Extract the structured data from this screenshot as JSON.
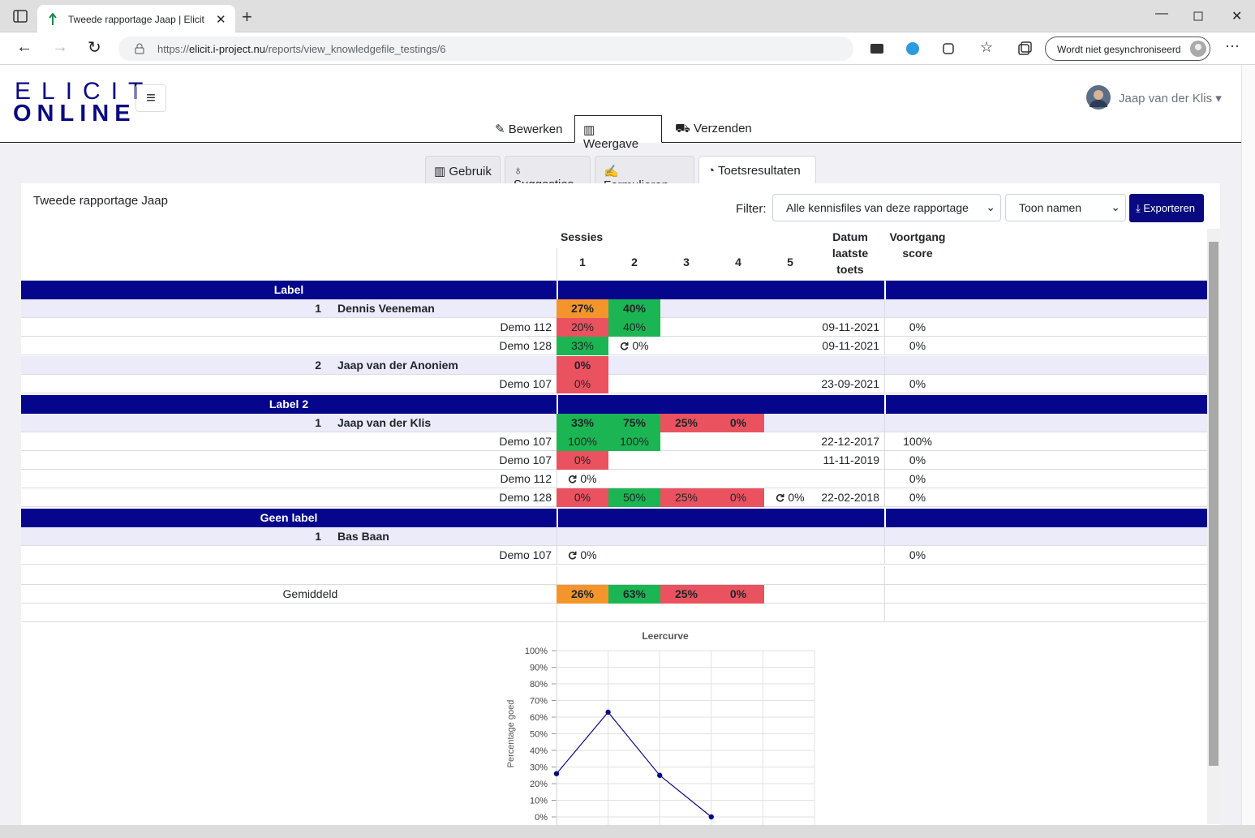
{
  "browser": {
    "tab_title": "Tweede rapportage Jaap | Elicit",
    "url_scheme": "https://",
    "url_domain": "elicit.i-project.nu",
    "url_path": "/reports/view_knowledgefile_testings/6",
    "sync_label": "Wordt niet gesynchroniseerd"
  },
  "header": {
    "logo_top": "ELICIT",
    "logo_bottom": "ONLINE",
    "user": "Jaap van der Klis",
    "tabs": [
      "Bewerken",
      "Weergave",
      "Verzenden"
    ]
  },
  "subtabs": [
    "Gebruik",
    "Suggesties",
    "Formulieren",
    "Toetsresultaten"
  ],
  "report": {
    "title": "Tweede rapportage Jaap",
    "filter_label": "Filter:",
    "filter_value": "Alle kennisfiles van deze rapportage",
    "names_value": "Toon namen",
    "export": "Exporteren"
  },
  "table": {
    "sessions_header": "Sessies",
    "session_numbers": [
      "1",
      "2",
      "3",
      "4",
      "5"
    ],
    "date_header": [
      "Datum",
      "laatste",
      "toets"
    ],
    "progress_header": [
      "Voortgang",
      "score"
    ],
    "groups": [
      {
        "label": "Label",
        "people": [
          {
            "num": "1",
            "name": "Dennis Veeneman",
            "sessions": [
              {
                "text": "27%",
                "status": "orange"
              },
              {
                "text": "40%",
                "status": "green"
              }
            ],
            "files": [
              {
                "name": "Demo 112",
                "sessions": [
                  {
                    "text": "20%",
                    "status": "red"
                  },
                  {
                    "text": "40%",
                    "status": "green"
                  }
                ],
                "date": "09-11-2021",
                "progress": "0%"
              },
              {
                "name": "Demo 128",
                "sessions": [
                  {
                    "text": "33%",
                    "status": "green"
                  },
                  {
                    "text": "0%",
                    "status": "retry"
                  }
                ],
                "date": "09-11-2021",
                "progress": "0%"
              }
            ]
          },
          {
            "num": "2",
            "name": "Jaap van der Anoniem",
            "sessions": [
              {
                "text": "0%",
                "status": "red"
              }
            ],
            "files": [
              {
                "name": "Demo 107",
                "sessions": [
                  {
                    "text": "0%",
                    "status": "red"
                  }
                ],
                "date": "23-09-2021",
                "progress": "0%"
              }
            ]
          }
        ]
      },
      {
        "label": "Label 2",
        "people": [
          {
            "num": "1",
            "name": "Jaap van der Klis",
            "sessions": [
              {
                "text": "33%",
                "status": "green"
              },
              {
                "text": "75%",
                "status": "green"
              },
              {
                "text": "25%",
                "status": "red"
              },
              {
                "text": "0%",
                "status": "red"
              }
            ],
            "files": [
              {
                "name": "Demo 107",
                "sessions": [
                  {
                    "text": "100%",
                    "status": "green"
                  },
                  {
                    "text": "100%",
                    "status": "green"
                  }
                ],
                "date": "22-12-2017",
                "progress": "100%"
              },
              {
                "name": "Demo 107",
                "sessions": [
                  {
                    "text": "0%",
                    "status": "red"
                  }
                ],
                "date": "11-11-2019",
                "progress": "0%"
              },
              {
                "name": "Demo 112",
                "sessions": [
                  {
                    "text": "0%",
                    "status": "retry"
                  }
                ],
                "progress": "0%"
              },
              {
                "name": "Demo 128",
                "sessions": [
                  {
                    "text": "0%",
                    "status": "red"
                  },
                  {
                    "text": "50%",
                    "status": "green"
                  },
                  {
                    "text": "25%",
                    "status": "red"
                  },
                  {
                    "text": "0%",
                    "status": "red"
                  },
                  {
                    "text": "0%",
                    "status": "retry"
                  }
                ],
                "date": "22-02-2018",
                "progress": "0%"
              }
            ]
          }
        ]
      },
      {
        "label": "Geen label",
        "people": [
          {
            "num": "1",
            "name": "Bas Baan",
            "sessions": [],
            "files": [
              {
                "name": "Demo 107",
                "sessions": [
                  {
                    "text": "0%",
                    "status": "retry"
                  }
                ],
                "progress": "0%"
              }
            ]
          }
        ]
      }
    ],
    "average": {
      "label": "Gemiddeld",
      "sessions": [
        {
          "text": "26%",
          "status": "orange"
        },
        {
          "text": "63%",
          "status": "green"
        },
        {
          "text": "25%",
          "status": "red"
        },
        {
          "text": "0%",
          "status": "red"
        }
      ]
    }
  },
  "chart_data": {
    "type": "line",
    "title": "Leercurve",
    "y_label": "Percentage goed",
    "color": "#0a0a80",
    "x": [
      1,
      2,
      3,
      4
    ],
    "values": [
      26,
      63,
      25,
      0
    ],
    "xlim": [
      1,
      6
    ],
    "xticks": [
      1,
      2,
      3,
      4,
      5,
      6
    ],
    "ylim": [
      0,
      100
    ],
    "grid": true,
    "yticks": [
      {
        "value": 0,
        "label": "0%"
      },
      {
        "value": 10,
        "label": "10%"
      },
      {
        "value": 20,
        "label": "20%"
      },
      {
        "value": 30,
        "label": "30%"
      },
      {
        "value": 40,
        "label": "40%"
      },
      {
        "value": 50,
        "label": "50%"
      },
      {
        "value": 60,
        "label": "60%"
      },
      {
        "value": 70,
        "label": "70%"
      },
      {
        "value": 80,
        "label": "80%"
      },
      {
        "value": 90,
        "label": "90%"
      },
      {
        "value": 100,
        "label": "100%"
      }
    ]
  }
}
